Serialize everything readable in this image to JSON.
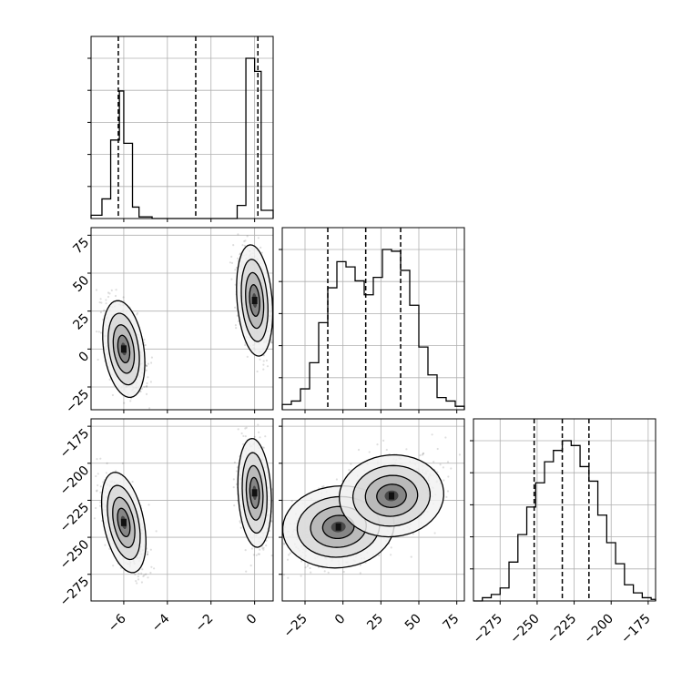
{
  "chart_data": {
    "type": "corner",
    "title": "",
    "parameters": [
      "",
      "",
      ""
    ],
    "quantiles": [
      [
        -6.25,
        -2.7,
        0.15
      ],
      [
        -10,
        15,
        38
      ],
      [
        -252,
        -233,
        -215
      ]
    ],
    "ranges": [
      [
        -7.5,
        0.85
      ],
      [
        -40,
        80
      ],
      [
        -293,
        -170
      ]
    ],
    "ticks": [
      [
        -6,
        -4,
        -2,
        0
      ],
      [
        -25,
        0,
        25,
        50,
        75
      ],
      [
        -275,
        -250,
        -225,
        -200,
        -175
      ]
    ],
    "tick_labels": {
      "param0": [
        "−6",
        "−4",
        "−2",
        "0"
      ],
      "param1": [
        "−25",
        "0",
        "25",
        "50",
        "75"
      ],
      "param2": [
        "−275",
        "−250",
        "−225",
        "−200",
        "−175"
      ]
    },
    "hist_param0": {
      "bin_edges": [
        -7.5,
        -7.0,
        -6.6,
        -6.2,
        -6.0,
        -5.6,
        -5.3,
        -4.7,
        -0.8,
        -0.4,
        0.0,
        0.3,
        0.85
      ],
      "counts": [
        0.02,
        0.12,
        0.48,
        0.78,
        0.46,
        0.07,
        0.01,
        0.0,
        0.08,
        0.98,
        0.9,
        0.05
      ],
      "note_counts": "relative height, max = 1"
    },
    "hist_param1": {
      "bin_edges": [
        -40,
        -34,
        -28,
        -22,
        -16,
        -10,
        -4,
        2,
        8,
        14,
        20,
        26,
        32,
        38,
        44,
        50,
        56,
        62,
        68,
        74,
        80
      ],
      "counts": [
        0.03,
        0.05,
        0.12,
        0.27,
        0.5,
        0.7,
        0.85,
        0.82,
        0.74,
        0.66,
        0.76,
        0.92,
        0.91,
        0.8,
        0.6,
        0.36,
        0.2,
        0.07,
        0.05,
        0.02
      ]
    },
    "hist_param2": {
      "bin_edges": [
        -293,
        -287,
        -281,
        -275,
        -269,
        -263,
        -257,
        -251,
        -245,
        -239,
        -233,
        -227,
        -221,
        -215,
        -209,
        -203,
        -197,
        -191,
        -185,
        -179,
        -173,
        -170
      ],
      "counts": [
        0.0,
        0.02,
        0.04,
        0.08,
        0.24,
        0.41,
        0.58,
        0.73,
        0.86,
        0.93,
        0.99,
        0.96,
        0.83,
        0.74,
        0.53,
        0.36,
        0.23,
        0.1,
        0.05,
        0.02,
        0.01
      ]
    },
    "scatter_clusters": [
      {
        "panel": "param0-vs-param1",
        "modes": [
          {
            "center": [
              -6.0,
              0
            ],
            "spread": [
              0.4,
              14
            ],
            "tilt": 0.55
          },
          {
            "center": [
              0.0,
              32
            ],
            "spread": [
              0.35,
              16
            ],
            "tilt": 0.3
          }
        ]
      },
      {
        "panel": "param0-vs-param2",
        "modes": [
          {
            "center": [
              -6.0,
              -240
            ],
            "spread": [
              0.4,
              15
            ],
            "tilt": 0.75
          },
          {
            "center": [
              0.0,
              -220
            ],
            "spread": [
              0.33,
              16
            ],
            "tilt": 0.2
          }
        ]
      },
      {
        "panel": "param1-vs-param2",
        "modes": [
          {
            "center": [
              -3,
              -243
            ],
            "spread": [
              16,
              12
            ],
            "tilt": 0.35
          },
          {
            "center": [
              32,
              -222
            ],
            "spread": [
              15,
              12
            ],
            "tilt": 0.35
          }
        ]
      }
    ],
    "grid": true,
    "legend": "none"
  },
  "colors": {
    "line": "#000000",
    "grid": "#b0b0b0",
    "point": "#000000",
    "fill_levels": [
      "#f2f2f2",
      "#d8d8d8",
      "#b2b2b2",
      "#7a7a7a",
      "#3a3a3a"
    ],
    "quantile_line": "#000000"
  }
}
